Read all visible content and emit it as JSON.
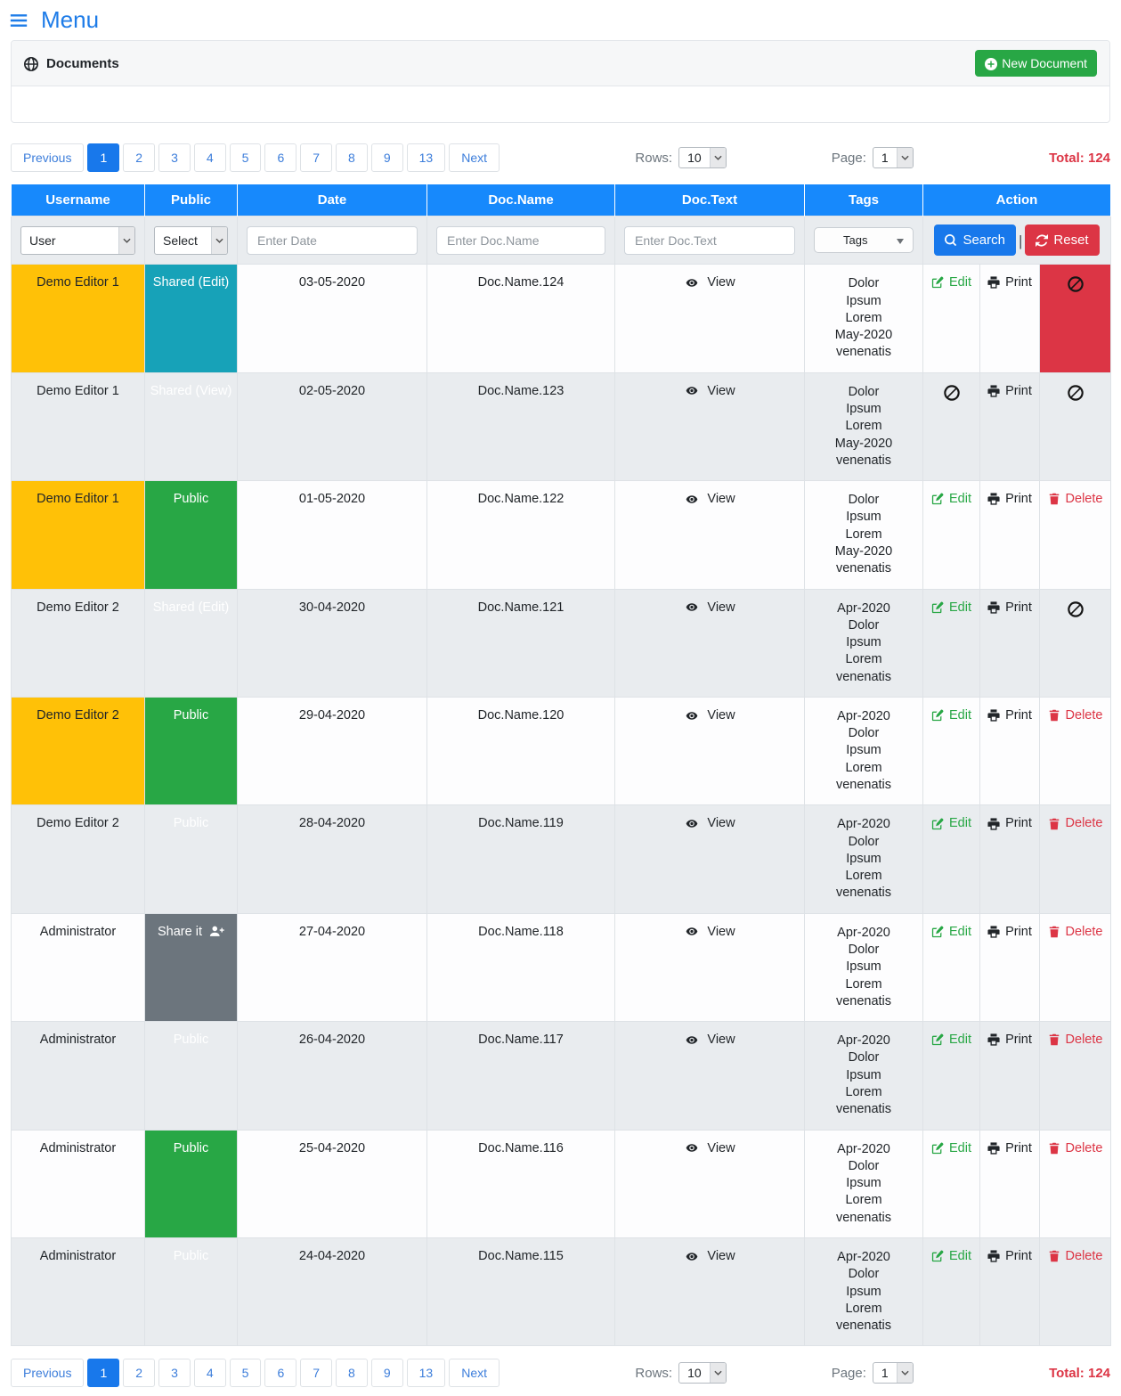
{
  "menu": {
    "title": "Menu"
  },
  "documents_panel": {
    "title": "Documents",
    "new_document_label": "New Document"
  },
  "pagination": {
    "previous_label": "Previous",
    "next_label": "Next",
    "pages": [
      "1",
      "2",
      "3",
      "4",
      "5",
      "6",
      "7",
      "8",
      "9",
      "13"
    ],
    "active_page": "1",
    "rows_label": "Rows:",
    "rows_value": "10",
    "page_label": "Page:",
    "page_value": "1",
    "total_label": "Total: 124"
  },
  "table": {
    "headers": {
      "username": "Username",
      "public": "Public",
      "date": "Date",
      "doc_name": "Doc.Name",
      "doc_text": "Doc.Text",
      "tags": "Tags",
      "action": "Action"
    },
    "filters": {
      "user_value": "User",
      "public_value": "Select",
      "date_placeholder": "Enter Date",
      "doc_name_placeholder": "Enter Doc.Name",
      "doc_text_placeholder": "Enter Doc.Text",
      "tags_value": "Tags",
      "search_label": "Search",
      "separator": "|",
      "reset_label": "Reset"
    },
    "view_label": "View",
    "action_labels": {
      "edit": "Edit",
      "print": "Print",
      "delete": "Delete"
    },
    "rows": [
      {
        "username": "Demo Editor 1",
        "username_variant": "warning",
        "public": "Shared (Edit)",
        "public_variant": "info",
        "date": "03-05-2020",
        "doc_name": "Doc.Name.124",
        "tags": [
          "Dolor",
          "Ipsum",
          "Lorem",
          "May-2020",
          "venenatis"
        ],
        "edit": "allowed",
        "print": "allowed",
        "delete": "blocked"
      },
      {
        "username": "Demo Editor 1",
        "username_variant": "warning",
        "public": "Shared (View)",
        "public_variant": "info",
        "date": "02-05-2020",
        "doc_name": "Doc.Name.123",
        "tags": [
          "Dolor",
          "Ipsum",
          "Lorem",
          "May-2020",
          "venenatis"
        ],
        "edit": "blocked",
        "print": "allowed",
        "delete": "blocked"
      },
      {
        "username": "Demo Editor 1",
        "username_variant": "warning",
        "public": "Public",
        "public_variant": "success",
        "date": "01-05-2020",
        "doc_name": "Doc.Name.122",
        "tags": [
          "Dolor",
          "Ipsum",
          "Lorem",
          "May-2020",
          "venenatis"
        ],
        "edit": "allowed",
        "print": "allowed",
        "delete": "allowed"
      },
      {
        "username": "Demo Editor 2",
        "username_variant": "warning",
        "public": "Shared (Edit)",
        "public_variant": "info",
        "date": "30-04-2020",
        "doc_name": "Doc.Name.121",
        "tags": [
          "Apr-2020",
          "Dolor",
          "Ipsum",
          "Lorem",
          "venenatis"
        ],
        "edit": "allowed",
        "print": "allowed",
        "delete": "blocked"
      },
      {
        "username": "Demo Editor 2",
        "username_variant": "warning",
        "public": "Public",
        "public_variant": "success",
        "date": "29-04-2020",
        "doc_name": "Doc.Name.120",
        "tags": [
          "Apr-2020",
          "Dolor",
          "Ipsum",
          "Lorem",
          "venenatis"
        ],
        "edit": "allowed",
        "print": "allowed",
        "delete": "allowed"
      },
      {
        "username": "Demo Editor 2",
        "username_variant": "warning",
        "public": "Public",
        "public_variant": "success",
        "date": "28-04-2020",
        "doc_name": "Doc.Name.119",
        "tags": [
          "Apr-2020",
          "Dolor",
          "Ipsum",
          "Lorem",
          "venenatis"
        ],
        "edit": "allowed",
        "print": "allowed",
        "delete": "allowed"
      },
      {
        "username": "Administrator",
        "username_variant": "",
        "public": "Share it",
        "public_variant": "secondary",
        "date": "27-04-2020",
        "doc_name": "Doc.Name.118",
        "tags": [
          "Apr-2020",
          "Dolor",
          "Ipsum",
          "Lorem",
          "venenatis"
        ],
        "edit": "allowed",
        "print": "allowed",
        "delete": "allowed"
      },
      {
        "username": "Administrator",
        "username_variant": "",
        "public": "Public",
        "public_variant": "success",
        "date": "26-04-2020",
        "doc_name": "Doc.Name.117",
        "tags": [
          "Apr-2020",
          "Dolor",
          "Ipsum",
          "Lorem",
          "venenatis"
        ],
        "edit": "allowed",
        "print": "allowed",
        "delete": "allowed"
      },
      {
        "username": "Administrator",
        "username_variant": "",
        "public": "Public",
        "public_variant": "success",
        "date": "25-04-2020",
        "doc_name": "Doc.Name.116",
        "tags": [
          "Apr-2020",
          "Dolor",
          "Ipsum",
          "Lorem",
          "venenatis"
        ],
        "edit": "allowed",
        "print": "allowed",
        "delete": "allowed"
      },
      {
        "username": "Administrator",
        "username_variant": "",
        "public": "Public",
        "public_variant": "success",
        "date": "24-04-2020",
        "doc_name": "Doc.Name.115",
        "tags": [
          "Apr-2020",
          "Dolor",
          "Ipsum",
          "Lorem",
          "venenatis"
        ],
        "edit": "allowed",
        "print": "allowed",
        "delete": "allowed"
      }
    ]
  },
  "colors": {
    "header_blue": "#1789fc",
    "primary_blue": "#1878eb",
    "link_blue": "#3d7edb",
    "success_green": "#28a745",
    "info_teal": "#17a2b8",
    "warning_yellow": "#ffc107",
    "secondary_gray": "#6c757d",
    "danger_red": "#dc3545",
    "stripe_gray": "#e9ecef"
  },
  "icons": {
    "menu": "hamburger-icon",
    "documents": "globe-icon",
    "new_document": "plus-circle-icon",
    "search": "search-icon",
    "reset": "sync-icon",
    "view": "eye-icon",
    "edit": "edit-icon",
    "print": "printer-icon",
    "delete": "trash-icon",
    "blocked": "ban-icon",
    "share": "person-plus-icon",
    "select_caret": "chevron-down-icon",
    "tags_caret": "caret-down-icon"
  }
}
